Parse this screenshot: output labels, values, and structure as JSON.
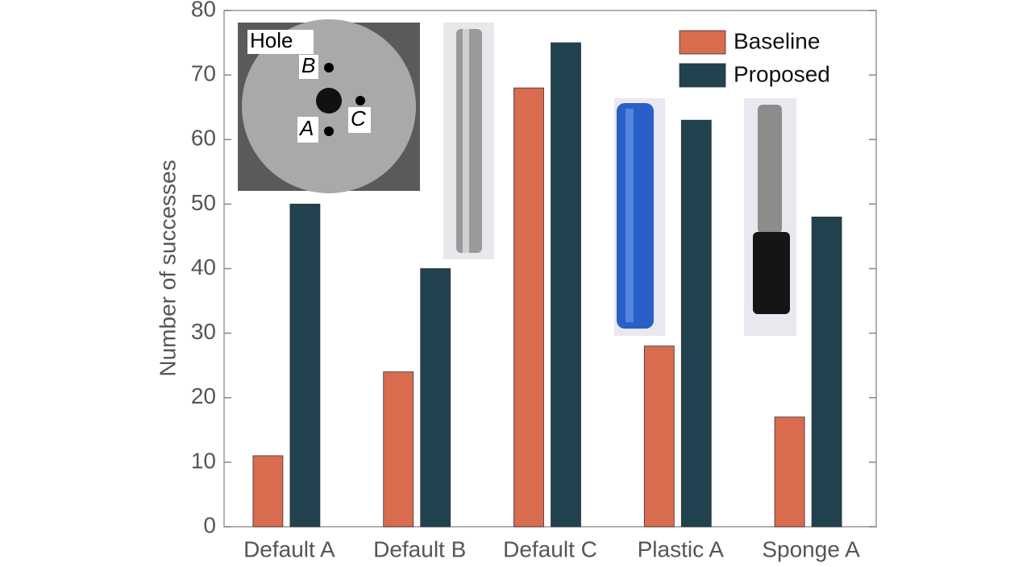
{
  "chart_data": {
    "type": "bar",
    "y_label": "Number of successes",
    "categories": [
      "Default A",
      "Default B",
      "Default C",
      "Plastic A",
      "Sponge A"
    ],
    "series": [
      {
        "name": "Baseline",
        "color": "#d96b4f",
        "values": [
          11,
          24,
          68,
          28,
          17
        ]
      },
      {
        "name": "Proposed",
        "color": "#21424f",
        "values": [
          50,
          40,
          75,
          63,
          48
        ]
      }
    ],
    "ylim": [
      0,
      80
    ],
    "yticks": [
      0,
      10,
      20,
      30,
      40,
      50,
      60,
      70,
      80
    ],
    "legend": "upper right",
    "annotations": [
      "Hole",
      "B",
      "A",
      "C"
    ]
  }
}
